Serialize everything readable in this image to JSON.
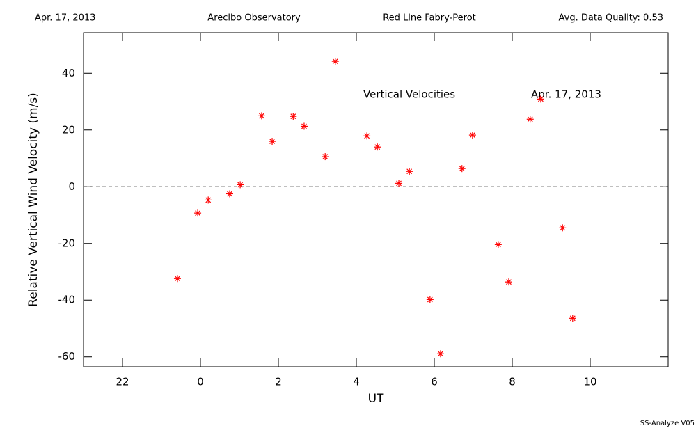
{
  "chart_data": {
    "type": "scatter",
    "header": [
      "Apr. 17, 2013",
      "Arecibo Observatory",
      "Red Line Fabry-Perot",
      "Avg. Data Quality: 0.53"
    ],
    "annotations": [
      "Vertical Velocities",
      "Apr. 17, 2013"
    ],
    "footer": "SS-Analyze V05",
    "x_label": "UT",
    "y_label": "Relative Vertical Wind Velocity (m/s)",
    "color": "#ff0000",
    "x": [
      -0.59,
      -0.07,
      0.2,
      0.75,
      1.02,
      1.57,
      1.84,
      2.38,
      2.66,
      3.2,
      3.46,
      4.27,
      4.54,
      5.09,
      5.36,
      5.89,
      6.16,
      6.71,
      6.98,
      7.64,
      7.91,
      8.46,
      8.73,
      9.29,
      9.55
    ],
    "values": [
      -32.4,
      -9.3,
      -4.7,
      -2.5,
      0.7,
      25.0,
      16.0,
      24.8,
      21.3,
      10.6,
      44.2,
      17.9,
      14.0,
      1.2,
      5.4,
      -39.8,
      -58.9,
      6.4,
      18.2,
      -20.4,
      -33.6,
      23.8,
      30.9,
      -14.5,
      -46.4
    ],
    "xlim": [
      -3,
      12
    ],
    "xticks": [
      {
        "value": -2,
        "label": "22"
      },
      0,
      2,
      4,
      6,
      8,
      10
    ],
    "ylim": [
      -63.5,
      54.3
    ],
    "yticks": [
      -60,
      -40,
      -20,
      0,
      20,
      40
    ],
    "hline": 0
  }
}
